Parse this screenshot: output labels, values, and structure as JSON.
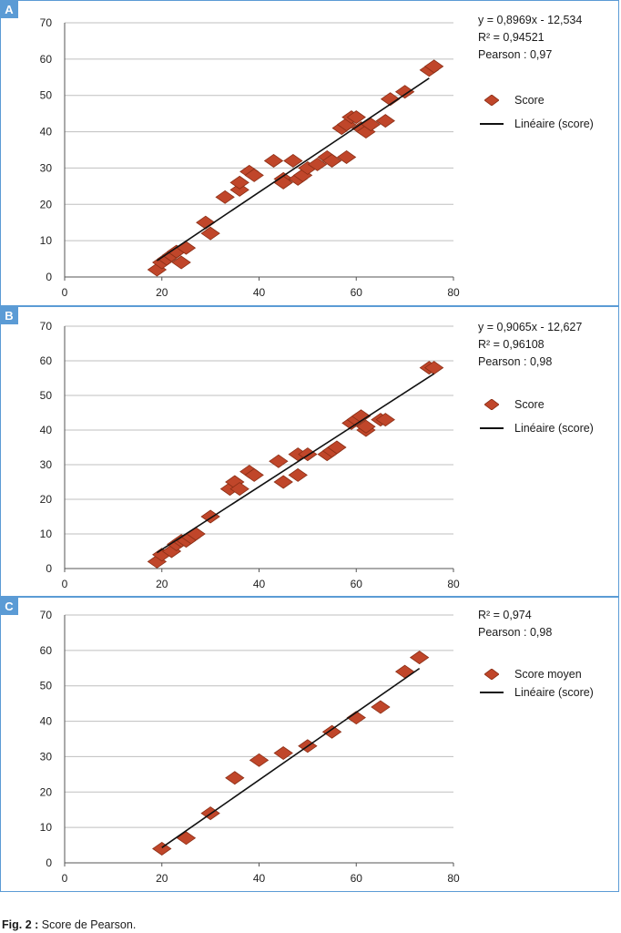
{
  "caption": {
    "prefix": "Fig. 2 :",
    "text": "Score de Pearson."
  },
  "colors": {
    "marker": "#c0462a",
    "marker_stroke": "#8a2e15",
    "trend": "#111111",
    "grid": "#bfbfbf",
    "border": "#5b9bd5"
  },
  "chart_data": [
    {
      "id": "A",
      "type": "scatter",
      "stats": [
        "y = 0,8969x - 12,534",
        "R² = 0,94521",
        "Pearson : 0,97"
      ],
      "legend": {
        "series": "Score",
        "trend": "Linéaire (score)"
      },
      "xlim": [
        0,
        80
      ],
      "ylim": [
        0,
        70
      ],
      "xticks": [
        "0",
        "20",
        "40",
        "60",
        "80"
      ],
      "yticks": [
        "0",
        "10",
        "20",
        "30",
        "40",
        "50",
        "60",
        "70"
      ],
      "trendline": {
        "slope": 0.8969,
        "intercept": -12.534,
        "x": [
          19,
          75
        ]
      },
      "points": [
        [
          19,
          2
        ],
        [
          20,
          4
        ],
        [
          21,
          5
        ],
        [
          22,
          6
        ],
        [
          23,
          7
        ],
        [
          24,
          4
        ],
        [
          25,
          8
        ],
        [
          29,
          15
        ],
        [
          30,
          12
        ],
        [
          33,
          22
        ],
        [
          36,
          24
        ],
        [
          36,
          26
        ],
        [
          38,
          29
        ],
        [
          39,
          28
        ],
        [
          43,
          32
        ],
        [
          45,
          27
        ],
        [
          45,
          26
        ],
        [
          47,
          32
        ],
        [
          48,
          27
        ],
        [
          49,
          28
        ],
        [
          50,
          30
        ],
        [
          52,
          31
        ],
        [
          54,
          33
        ],
        [
          55,
          32
        ],
        [
          57,
          41
        ],
        [
          58,
          42
        ],
        [
          58,
          33
        ],
        [
          59,
          44
        ],
        [
          60,
          44
        ],
        [
          61,
          41
        ],
        [
          62,
          40
        ],
        [
          63,
          42
        ],
        [
          66,
          43
        ],
        [
          67,
          49
        ],
        [
          70,
          51
        ],
        [
          75,
          57
        ],
        [
          76,
          58
        ]
      ]
    },
    {
      "id": "B",
      "type": "scatter",
      "stats": [
        "y = 0,9065x - 12,627",
        "R² = 0,96108",
        "Pearson : 0,98"
      ],
      "legend": {
        "series": "Score",
        "trend": "Linéaire (score)"
      },
      "xlim": [
        0,
        80
      ],
      "ylim": [
        0,
        70
      ],
      "xticks": [
        "0",
        "20",
        "40",
        "60",
        "80"
      ],
      "yticks": [
        "0",
        "10",
        "20",
        "30",
        "40",
        "50",
        "60",
        "70"
      ],
      "trendline": {
        "slope": 0.9065,
        "intercept": -12.627,
        "x": [
          19,
          76
        ]
      },
      "points": [
        [
          19,
          2
        ],
        [
          20,
          4
        ],
        [
          22,
          5
        ],
        [
          23,
          7
        ],
        [
          24,
          8
        ],
        [
          25,
          8
        ],
        [
          26,
          9
        ],
        [
          27,
          10
        ],
        [
          30,
          15
        ],
        [
          34,
          23
        ],
        [
          35,
          25
        ],
        [
          36,
          23
        ],
        [
          38,
          28
        ],
        [
          39,
          27
        ],
        [
          44,
          31
        ],
        [
          45,
          25
        ],
        [
          48,
          27
        ],
        [
          48,
          33
        ],
        [
          50,
          33
        ],
        [
          54,
          33
        ],
        [
          55,
          34
        ],
        [
          56,
          35
        ],
        [
          59,
          42
        ],
        [
          60,
          43
        ],
        [
          61,
          44
        ],
        [
          62,
          40
        ],
        [
          62,
          41
        ],
        [
          65,
          43
        ],
        [
          66,
          43
        ],
        [
          75,
          58
        ],
        [
          76,
          58
        ]
      ]
    },
    {
      "id": "C",
      "type": "scatter",
      "stats": [
        "R² = 0,974",
        "Pearson : 0,98"
      ],
      "legend": {
        "series": "Score moyen",
        "trend": "Linéaire (score)"
      },
      "xlim": [
        0,
        80
      ],
      "ylim": [
        0,
        70
      ],
      "xticks": [
        "0",
        "20",
        "40",
        "60",
        "80"
      ],
      "yticks": [
        "0",
        "10",
        "20",
        "30",
        "40",
        "50",
        "60",
        "70"
      ],
      "trendline": {
        "slope": 0.955,
        "intercept": -14.8,
        "x": [
          20,
          73
        ]
      },
      "points": [
        [
          20,
          4
        ],
        [
          25,
          7
        ],
        [
          30,
          14
        ],
        [
          35,
          24
        ],
        [
          40,
          29
        ],
        [
          45,
          31
        ],
        [
          50,
          33
        ],
        [
          55,
          37
        ],
        [
          60,
          41
        ],
        [
          65,
          44
        ],
        [
          70,
          54
        ],
        [
          73,
          58
        ]
      ]
    }
  ]
}
